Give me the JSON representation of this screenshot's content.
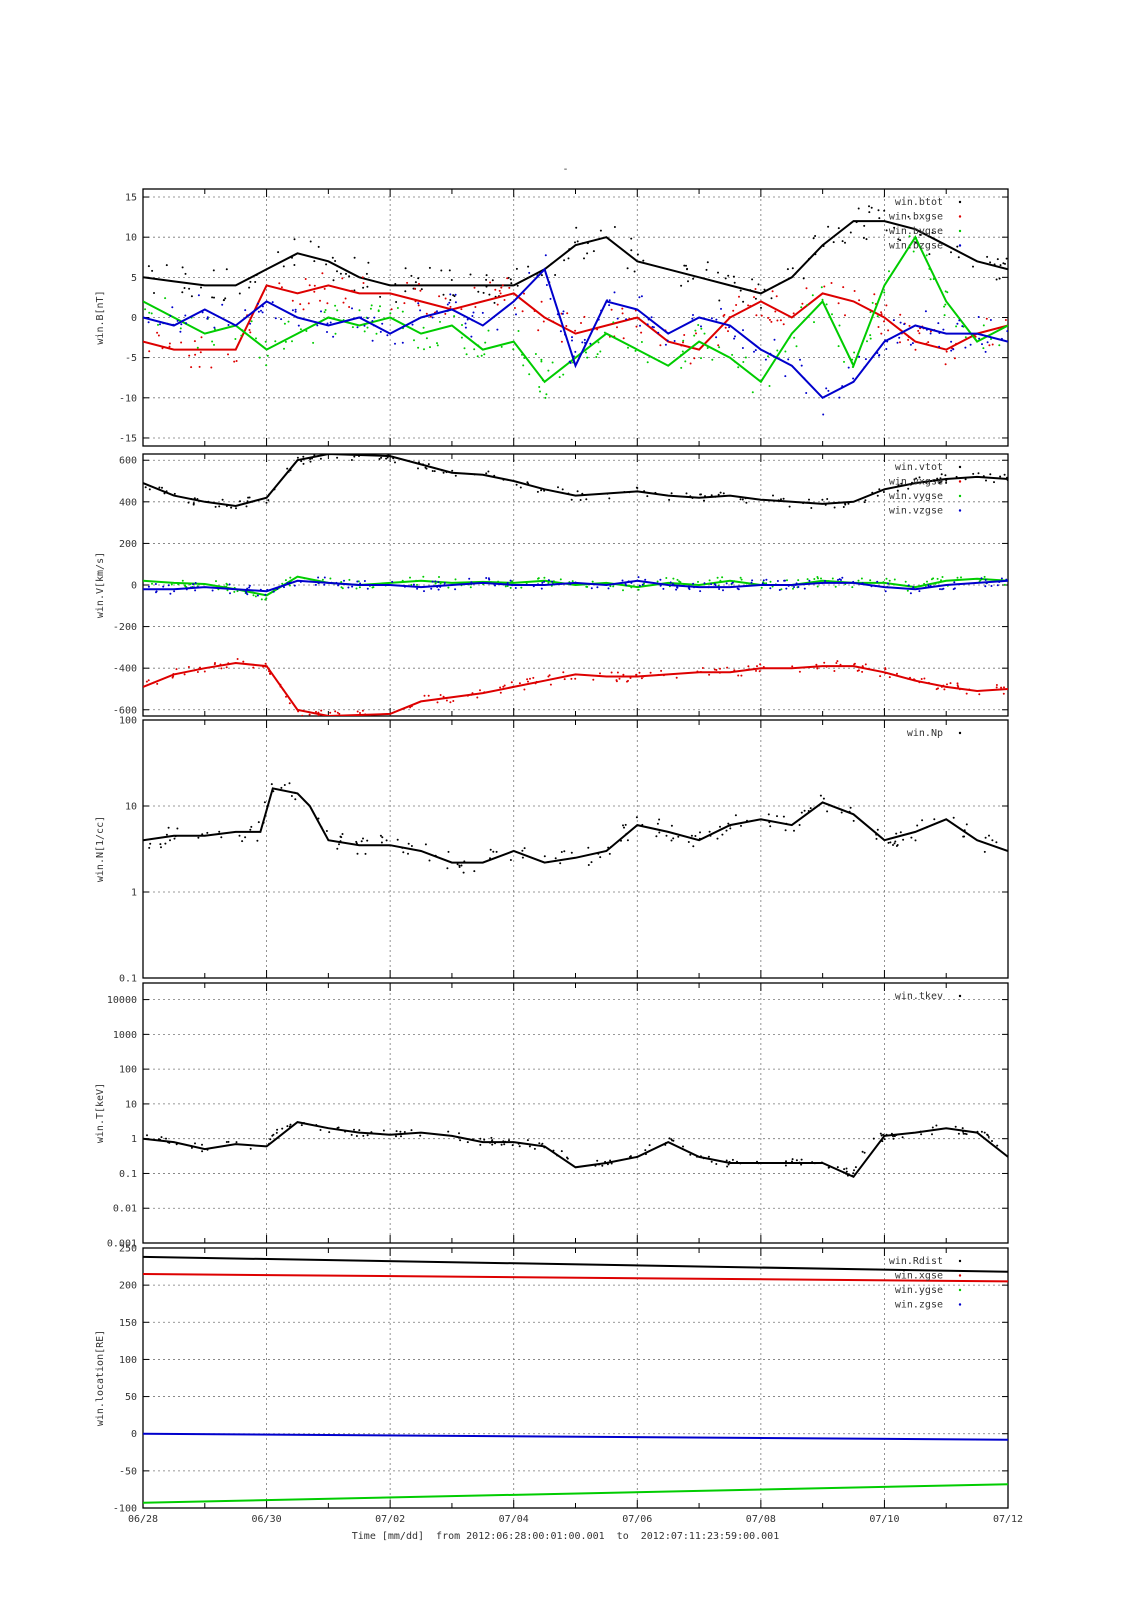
{
  "page_title": "-",
  "x_axis_caption": "Time [mm/dd]  from 2012:06:28:00:01:00.001  to  2012:07:11:23:59:00.001",
  "chart_data": [
    {
      "type": "scatter",
      "ylabel": "win.B[nT]",
      "ylim": [
        -16,
        16
      ],
      "yscale": "linear",
      "yticks": [
        -15,
        -10,
        -5,
        0,
        5,
        10,
        15
      ],
      "ytick_labels": [
        "-15",
        "-10",
        "-5",
        "0",
        "5",
        "10",
        "15"
      ],
      "grid": true,
      "legend_position": "top-right",
      "series": [
        {
          "name": "win.btot",
          "color": "#000000",
          "x": [
            0,
            0.5,
            1,
            1.5,
            2,
            2.5,
            3,
            3.5,
            4,
            4.5,
            5,
            5.5,
            6,
            6.5,
            7,
            7.5,
            8,
            8.5,
            9,
            9.5,
            10,
            10.5,
            11,
            11.5,
            12,
            12.5,
            13,
            13.5,
            14
          ],
          "y": [
            5,
            4.5,
            4,
            4,
            6,
            8,
            7,
            5,
            4,
            4,
            4,
            4,
            4,
            6,
            9,
            10,
            7,
            6,
            5,
            4,
            3,
            5,
            9,
            12,
            12,
            11,
            9,
            7,
            6
          ]
        },
        {
          "name": "win.bxgse",
          "color": "#dd0000",
          "x": [
            0,
            0.5,
            1,
            1.5,
            2,
            2.5,
            3,
            3.5,
            4,
            4.5,
            5,
            5.5,
            6,
            6.5,
            7,
            7.5,
            8,
            8.5,
            9,
            9.5,
            10,
            10.5,
            11,
            11.5,
            12,
            12.5,
            13,
            13.5,
            14
          ],
          "y": [
            -3,
            -4,
            -4,
            -4,
            4,
            3,
            4,
            3,
            3,
            2,
            1,
            2,
            3,
            0,
            -2,
            -1,
            0,
            -3,
            -4,
            0,
            2,
            0,
            3,
            2,
            0,
            -3,
            -4,
            -2,
            -1
          ]
        },
        {
          "name": "win.bygse",
          "color": "#00cc00",
          "x": [
            0,
            0.5,
            1,
            1.5,
            2,
            2.5,
            3,
            3.5,
            4,
            4.5,
            5,
            5.5,
            6,
            6.5,
            7,
            7.5,
            8,
            8.5,
            9,
            9.5,
            10,
            10.5,
            11,
            11.5,
            12,
            12.5,
            13,
            13.5,
            14
          ],
          "y": [
            2,
            0,
            -2,
            -1,
            -4,
            -2,
            0,
            -1,
            0,
            -2,
            -1,
            -4,
            -3,
            -8,
            -5,
            -2,
            -4,
            -6,
            -3,
            -5,
            -8,
            -2,
            2,
            -6,
            4,
            10,
            2,
            -3,
            -1
          ]
        },
        {
          "name": "win.bzgse",
          "color": "#0000cc",
          "x": [
            0,
            0.5,
            1,
            1.5,
            2,
            2.5,
            3,
            3.5,
            4,
            4.5,
            5,
            5.5,
            6,
            6.5,
            7,
            7.5,
            8,
            8.5,
            9,
            9.5,
            10,
            10.5,
            11,
            11.5,
            12,
            12.5,
            13,
            13.5,
            14
          ],
          "y": [
            0,
            -1,
            1,
            -1,
            2,
            0,
            -1,
            0,
            -2,
            0,
            1,
            -1,
            2,
            6,
            -6,
            2,
            1,
            -2,
            0,
            -1,
            -4,
            -6,
            -10,
            -8,
            -3,
            -1,
            -2,
            -2,
            -3
          ]
        }
      ]
    },
    {
      "type": "scatter",
      "ylabel": "win.V[km/s]",
      "ylim": [
        -630,
        630
      ],
      "yscale": "linear",
      "yticks": [
        -600,
        -400,
        -200,
        0,
        200,
        400,
        600
      ],
      "ytick_labels": [
        "-600",
        "-400",
        "-200",
        "0",
        "200",
        "400",
        "600"
      ],
      "grid": true,
      "legend_position": "top-right",
      "series": [
        {
          "name": "win.vtot",
          "color": "#000000",
          "x": [
            0,
            0.5,
            1,
            1.5,
            2,
            2.5,
            3,
            3.5,
            4,
            4.5,
            5,
            5.5,
            6,
            6.5,
            7,
            7.5,
            8,
            8.5,
            9,
            9.5,
            10,
            10.5,
            11,
            11.5,
            12,
            12.5,
            13,
            13.5,
            14
          ],
          "y": [
            490,
            430,
            400,
            380,
            420,
            600,
            630,
            625,
            620,
            580,
            540,
            530,
            500,
            460,
            430,
            440,
            450,
            430,
            420,
            430,
            410,
            400,
            390,
            400,
            460,
            490,
            510,
            520,
            510
          ]
        },
        {
          "name": "win.vxgse",
          "color": "#dd0000",
          "x": [
            0,
            0.5,
            1,
            1.5,
            2,
            2.5,
            3,
            3.5,
            4,
            4.5,
            5,
            5.5,
            6,
            6.5,
            7,
            7.5,
            8,
            8.5,
            9,
            9.5,
            10,
            10.5,
            11,
            11.5,
            12,
            12.5,
            13,
            13.5,
            14
          ],
          "y": [
            -490,
            -430,
            -400,
            -375,
            -390,
            -600,
            -630,
            -625,
            -620,
            -560,
            -540,
            -520,
            -490,
            -460,
            -430,
            -440,
            -440,
            -430,
            -420,
            -420,
            -400,
            -400,
            -390,
            -390,
            -420,
            -460,
            -490,
            -510,
            -500
          ]
        },
        {
          "name": "win.vygse",
          "color": "#00cc00",
          "x": [
            0,
            0.5,
            1,
            1.5,
            2,
            2.5,
            3,
            3.5,
            4,
            4.5,
            5,
            5.5,
            6,
            6.5,
            7,
            7.5,
            8,
            8.5,
            9,
            9.5,
            10,
            10.5,
            11,
            11.5,
            12,
            12.5,
            13,
            13.5,
            14
          ],
          "y": [
            20,
            10,
            5,
            -20,
            -50,
            40,
            10,
            0,
            10,
            20,
            10,
            15,
            10,
            20,
            0,
            10,
            -10,
            10,
            0,
            20,
            0,
            0,
            20,
            10,
            10,
            -10,
            20,
            30,
            20
          ]
        },
        {
          "name": "win.vzgse",
          "color": "#0000cc",
          "x": [
            0,
            0.5,
            1,
            1.5,
            2,
            2.5,
            3,
            3.5,
            4,
            4.5,
            5,
            5.5,
            6,
            6.5,
            7,
            7.5,
            8,
            8.5,
            9,
            9.5,
            10,
            10.5,
            11,
            11.5,
            12,
            12.5,
            13,
            13.5,
            14
          ],
          "y": [
            -20,
            -20,
            -10,
            -20,
            -30,
            20,
            10,
            0,
            0,
            -10,
            0,
            10,
            0,
            0,
            10,
            0,
            20,
            0,
            -10,
            -10,
            0,
            0,
            10,
            10,
            -10,
            -20,
            0,
            10,
            20
          ]
        }
      ]
    },
    {
      "type": "scatter",
      "ylabel": "win.N[1/cc]",
      "ylim": [
        0.1,
        100
      ],
      "yscale": "log",
      "yticks": [
        0.1,
        1,
        10,
        100
      ],
      "ytick_labels": [
        "0.1",
        "1",
        "10",
        "100"
      ],
      "grid": true,
      "legend_position": "top-right",
      "series": [
        {
          "name": "win.Np",
          "color": "#000000",
          "x": [
            0,
            0.5,
            1,
            1.5,
            1.9,
            2.1,
            2.5,
            2.7,
            3,
            3.5,
            4,
            4.5,
            5,
            5.5,
            6,
            6.5,
            7,
            7.5,
            8,
            8.5,
            9,
            9.5,
            10,
            10.5,
            11,
            11.5,
            12,
            12.5,
            13,
            13.5,
            14
          ],
          "y": [
            4,
            4.5,
            4.5,
            5,
            5,
            16,
            14,
            10,
            4,
            3.5,
            3.5,
            3,
            2.2,
            2.2,
            3,
            2.2,
            2.5,
            3,
            6,
            5,
            4,
            6,
            7,
            6,
            11,
            8,
            4,
            5,
            7,
            4,
            3
          ]
        }
      ]
    },
    {
      "type": "scatter",
      "ylabel": "win.T[keV]",
      "ylim": [
        0.001,
        30000
      ],
      "yscale": "log",
      "yticks": [
        0.001,
        0.01,
        0.1,
        1,
        10,
        100,
        1000,
        10000
      ],
      "ytick_labels": [
        "0.001",
        "0.01",
        "0.1",
        "1",
        "10",
        "100",
        "1000",
        "10000"
      ],
      "grid": true,
      "legend_position": "top-right",
      "series": [
        {
          "name": "win.tkev",
          "color": "#000000",
          "x": [
            0,
            0.5,
            1,
            1.5,
            2,
            2.5,
            3,
            3.5,
            4,
            4.5,
            5,
            5.5,
            6,
            6.5,
            7,
            7.5,
            8,
            8.5,
            9,
            9.5,
            10,
            10.5,
            11,
            11.5,
            12,
            12.5,
            13,
            13.5,
            14
          ],
          "y": [
            1,
            0.8,
            0.5,
            0.7,
            0.6,
            3,
            2,
            1.5,
            1.3,
            1.5,
            1.2,
            0.8,
            0.8,
            0.6,
            0.15,
            0.2,
            0.3,
            0.8,
            0.3,
            0.2,
            0.2,
            0.2,
            0.2,
            0.08,
            1.2,
            1.5,
            2,
            1.5,
            0.3
          ]
        }
      ]
    },
    {
      "type": "scatter",
      "ylabel": "win.location[RE]",
      "ylim": [
        -100,
        250
      ],
      "yscale": "linear",
      "yticks": [
        -100,
        -50,
        0,
        50,
        100,
        150,
        200,
        250
      ],
      "ytick_labels": [
        "-100",
        "-50",
        "0",
        "50",
        "100",
        "150",
        "200",
        "250"
      ],
      "grid": true,
      "legend_position": "top-right",
      "series": [
        {
          "name": "win.Rdist",
          "color": "#000000",
          "x": [
            0,
            14
          ],
          "y": [
            238,
            218
          ]
        },
        {
          "name": "win.xgse",
          "color": "#dd0000",
          "x": [
            0,
            14
          ],
          "y": [
            215,
            205
          ]
        },
        {
          "name": "win.ygse",
          "color": "#00cc00",
          "x": [
            0,
            14
          ],
          "y": [
            -93,
            -68
          ]
        },
        {
          "name": "win.zgse",
          "color": "#0000cc",
          "x": [
            0,
            14
          ],
          "y": [
            0,
            -8
          ]
        }
      ]
    }
  ],
  "x_axis": {
    "xlim": [
      0,
      14
    ],
    "ticks": [
      0,
      2,
      4,
      6,
      8,
      10,
      12,
      14
    ],
    "tick_labels": [
      "06/28",
      "06/30",
      "07/02",
      "07/04",
      "07/06",
      "07/08",
      "07/10",
      "07/12"
    ]
  }
}
